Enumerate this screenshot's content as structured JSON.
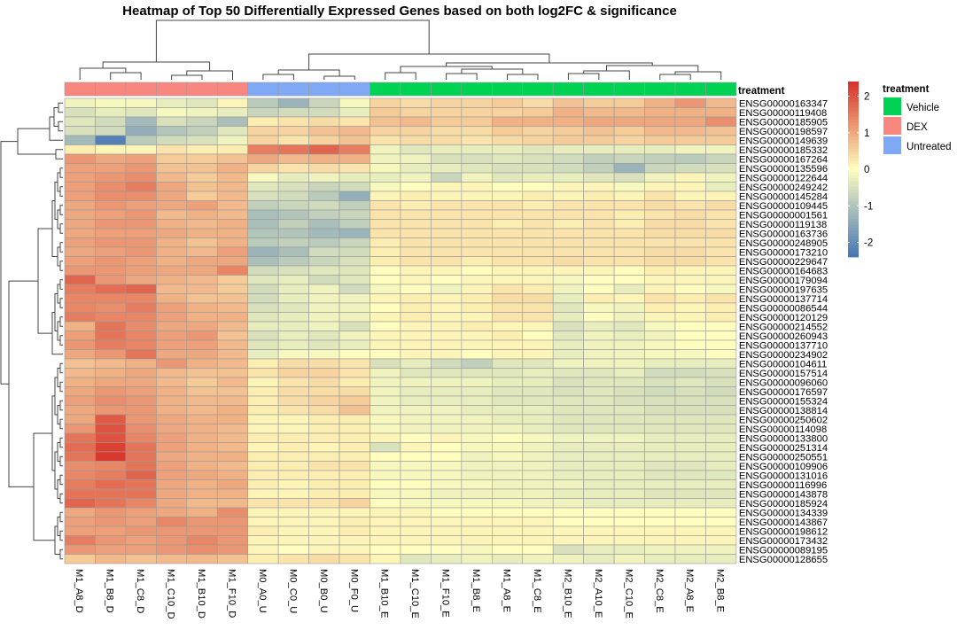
{
  "chart_data": {
    "type": "heatmap",
    "title": "Heatmap of Top 50 Differentially Expressed Genes based on both log2FC & significance",
    "annotation_title": "treatment",
    "legend": {
      "title": "treatment",
      "items": [
        {
          "label": "Vehicle",
          "color": "#00d254"
        },
        {
          "label": "DEX",
          "color": "#f8877f"
        },
        {
          "label": "Untreated",
          "color": "#80a9f5"
        }
      ]
    },
    "colorbar": {
      "ticks": [
        "2",
        "1",
        "0",
        "-1",
        "-2"
      ],
      "tick_values": [
        2,
        1,
        0,
        -1,
        -2
      ],
      "range": [
        -2.4,
        2.4
      ],
      "colors": [
        "#4575b4",
        "#fffebe",
        "#d73027"
      ]
    },
    "columns": [
      "M1_A8_D",
      "M1_B8_D",
      "M1_C8_D",
      "M1_C10_D",
      "M1_B10_D",
      "M1_F10_D",
      "M0_A0_U",
      "M0_C0_U",
      "M0_B0_U",
      "M0_F0_U",
      "M1_B10_E",
      "M1_C10_E",
      "M1_F10_E",
      "M1_B8_E",
      "M1_A8_E",
      "M1_C8_E",
      "M2_B10_E",
      "M2_A10_E",
      "M2_C10_E",
      "M2_C8_E",
      "M2_A8_E",
      "M2_B8_E"
    ],
    "column_treatment": [
      "DEX",
      "DEX",
      "DEX",
      "DEX",
      "DEX",
      "DEX",
      "Untreated",
      "Untreated",
      "Untreated",
      "Untreated",
      "Vehicle",
      "Vehicle",
      "Vehicle",
      "Vehicle",
      "Vehicle",
      "Vehicle",
      "Vehicle",
      "Vehicle",
      "Vehicle",
      "Vehicle",
      "Vehicle",
      "Vehicle"
    ],
    "rows": [
      "ENSG00000163347",
      "ENSG00000119408",
      "ENSG00000185905",
      "ENSG00000198597",
      "ENSG00000149639",
      "ENSG00000185332",
      "ENSG00000167264",
      "ENSG00000135596",
      "ENSG00000122644",
      "ENSG00000249242",
      "ENSG00000145284",
      "ENSG00000109445",
      "ENSG00000001561",
      "ENSG00000119138",
      "ENSG00000163736",
      "ENSG00000248905",
      "ENSG00000173210",
      "ENSG00000229647",
      "ENSG00000164683",
      "ENSG00000179094",
      "ENSG00000197635",
      "ENSG00000137714",
      "ENSG00000086544",
      "ENSG00000120129",
      "ENSG00000214552",
      "ENSG00000260943",
      "ENSG00000137710",
      "ENSG00000234902",
      "ENSG00000104611",
      "ENSG00000157514",
      "ENSG00000096060",
      "ENSG00000176597",
      "ENSG00000155324",
      "ENSG00000138814",
      "ENSG00000250602",
      "ENSG00000114098",
      "ENSG00000133800",
      "ENSG00000251314",
      "ENSG00000250551",
      "ENSG00000109906",
      "ENSG00000131016",
      "ENSG00000116996",
      "ENSG00000143878",
      "ENSG00000185924",
      "ENSG00000134339",
      "ENSG00000143867",
      "ENSG00000198612",
      "ENSG00000173432",
      "ENSG00000089195",
      "ENSG00000128655"
    ],
    "values": [
      [
        -0.2,
        -0.1,
        -0.1,
        -0.3,
        -0.4,
        0.1,
        -0.9,
        -1.3,
        -0.7,
        -0.1,
        0.5,
        0.4,
        0.5,
        0.5,
        0.6,
        0.4,
        0.7,
        0.6,
        0.6,
        0.9,
        1.2,
        0.8
      ],
      [
        -0.5,
        -0.3,
        -0.4,
        -0.1,
        -0.2,
        -0.3,
        -0.7,
        -0.6,
        -0.6,
        -0.3,
        0.6,
        0.5,
        0.5,
        0.5,
        0.5,
        0.6,
        0.9,
        0.8,
        0.8,
        0.9,
        0.9,
        0.9
      ],
      [
        -0.4,
        -0.6,
        -1.2,
        -0.5,
        -0.7,
        -1.1,
        0.2,
        0.3,
        0.4,
        0.3,
        0.7,
        0.8,
        0.6,
        0.6,
        0.9,
        0.9,
        0.9,
        1.0,
        1.0,
        1.0,
        1.0,
        1.3
      ],
      [
        -0.5,
        -0.6,
        -1.4,
        -1.0,
        -0.8,
        -0.4,
        0.5,
        0.5,
        0.7,
        0.8,
        0.5,
        0.5,
        0.4,
        0.4,
        0.6,
        0.5,
        0.6,
        0.7,
        0.6,
        0.8,
        0.8,
        0.7
      ],
      [
        -1.2,
        -2.2,
        -0.9,
        -0.6,
        -0.5,
        -0.2,
        0.5,
        0.3,
        0.5,
        0.7,
        0.3,
        0.4,
        0.4,
        0.3,
        0.4,
        0.5,
        0.6,
        0.6,
        0.5,
        0.6,
        0.6,
        0.6
      ],
      [
        0.2,
        0.1,
        0.1,
        0.3,
        0.2,
        0.2,
        1.5,
        1.6,
        1.8,
        1.5,
        -0.2,
        -0.4,
        -0.3,
        -0.3,
        -0.3,
        -0.4,
        -0.3,
        -0.3,
        -0.3,
        -0.3,
        -0.2,
        -0.2
      ],
      [
        1.2,
        1.0,
        1.1,
        0.6,
        0.6,
        0.7,
        1.0,
        0.8,
        0.9,
        0.9,
        -0.2,
        -0.2,
        -0.5,
        -0.5,
        -0.4,
        -0.5,
        -0.6,
        -0.8,
        -0.7,
        -0.8,
        -0.9,
        -0.7
      ],
      [
        1.1,
        1.1,
        1.2,
        0.7,
        0.7,
        0.9,
        0.5,
        0.3,
        0.4,
        0.3,
        -0.1,
        -0.3,
        -0.3,
        -0.4,
        -0.5,
        -0.5,
        -0.6,
        -0.8,
        -1.3,
        -0.7,
        -0.6,
        -0.5
      ],
      [
        1.1,
        1.2,
        1.3,
        0.8,
        0.6,
        0.8,
        -0.1,
        -0.3,
        -0.2,
        -0.3,
        -0.3,
        -0.2,
        -0.7,
        -0.2,
        -0.4,
        -0.3,
        -0.3,
        -0.4,
        -0.5,
        -0.2,
        0.1,
        -0.2
      ],
      [
        1.1,
        1.3,
        1.5,
        1.0,
        0.7,
        0.8,
        -0.4,
        -0.5,
        -0.7,
        -0.6,
        -0.1,
        0.0,
        0.1,
        0.1,
        0.0,
        0.0,
        0.1,
        0.1,
        -0.1,
        0.1,
        0.1,
        -0.3
      ],
      [
        1.1,
        1.3,
        1.3,
        1.0,
        0.6,
        0.8,
        -0.5,
        -0.6,
        -0.9,
        -1.4,
        0.1,
        0.2,
        0.1,
        0.1,
        0.1,
        0.2,
        0.1,
        0.2,
        0.1,
        0.3,
        0.1,
        0.1
      ],
      [
        1.0,
        1.2,
        1.1,
        1.0,
        1.1,
        0.8,
        -0.8,
        -0.7,
        -0.6,
        -0.8,
        0.3,
        0.2,
        0.3,
        0.3,
        0.3,
        0.2,
        0.3,
        0.3,
        0.3,
        0.4,
        0.3,
        0.4
      ],
      [
        1.0,
        1.1,
        1.2,
        0.8,
        0.9,
        0.8,
        -1.1,
        -1.0,
        -0.8,
        -0.7,
        0.3,
        0.3,
        0.3,
        0.3,
        0.3,
        0.3,
        0.3,
        0.3,
        0.2,
        0.3,
        0.4,
        0.3
      ],
      [
        1.0,
        1.2,
        1.2,
        0.9,
        0.8,
        0.9,
        -1.1,
        -0.8,
        -1.1,
        -0.8,
        0.3,
        0.3,
        0.3,
        0.3,
        0.2,
        0.3,
        0.2,
        0.3,
        0.2,
        0.4,
        0.4,
        0.3
      ],
      [
        1.0,
        1.1,
        1.1,
        1.0,
        0.9,
        0.9,
        -1.0,
        -1.0,
        -1.2,
        -1.3,
        0.3,
        0.3,
        0.3,
        0.3,
        0.3,
        0.3,
        0.3,
        0.3,
        0.3,
        0.4,
        0.4,
        0.4
      ],
      [
        1.1,
        1.2,
        1.2,
        0.9,
        0.7,
        0.9,
        -0.9,
        -0.8,
        -0.9,
        -0.7,
        0.2,
        0.3,
        0.3,
        0.3,
        0.3,
        0.3,
        0.3,
        0.3,
        0.3,
        0.3,
        0.3,
        0.3
      ],
      [
        1.0,
        1.1,
        1.2,
        0.9,
        0.8,
        1.1,
        -1.3,
        -1.1,
        -0.6,
        -0.6,
        0.2,
        0.3,
        0.3,
        0.3,
        0.3,
        0.3,
        0.3,
        0.3,
        0.3,
        0.4,
        0.4,
        0.3
      ],
      [
        1.1,
        1.2,
        1.1,
        0.9,
        1.0,
        1.0,
        -1.1,
        -0.9,
        -0.7,
        -0.5,
        0.2,
        0.3,
        0.3,
        0.2,
        0.3,
        0.3,
        0.4,
        0.3,
        0.3,
        0.4,
        0.4,
        0.3
      ],
      [
        1.2,
        1.2,
        1.1,
        1.0,
        1.0,
        1.4,
        -0.6,
        -0.5,
        -0.4,
        -0.4,
        0.0,
        0.1,
        0.1,
        0.0,
        0.1,
        0.1,
        0.1,
        0.1,
        0.0,
        0.2,
        0.1,
        0.1
      ],
      [
        1.8,
        1.2,
        1.0,
        0.9,
        0.8,
        0.6,
        -0.4,
        -0.3,
        -0.6,
        -0.4,
        0.0,
        0.1,
        0.0,
        0.1,
        0.1,
        0.1,
        -0.1,
        0.0,
        0.0,
        0.1,
        0.1,
        0.1
      ],
      [
        1.5,
        1.7,
        1.8,
        0.8,
        0.8,
        0.6,
        -0.6,
        -0.3,
        -0.2,
        -0.6,
        -0.1,
        0.0,
        -0.2,
        0.1,
        0.3,
        0.2,
        -0.2,
        0.0,
        -0.3,
        0.1,
        0.0,
        -0.1
      ],
      [
        1.4,
        1.4,
        1.4,
        0.9,
        0.7,
        0.7,
        -0.6,
        -0.3,
        -0.2,
        -0.2,
        0.1,
        0.2,
        0.1,
        0.2,
        0.4,
        0.4,
        -0.3,
        0.2,
        0.1,
        0.3,
        0.2,
        0.3
      ],
      [
        1.4,
        1.3,
        1.5,
        1.1,
        0.9,
        0.8,
        -0.5,
        -0.4,
        -0.2,
        -0.2,
        0.0,
        0.2,
        0.1,
        0.2,
        0.3,
        0.3,
        -0.4,
        -0.1,
        -0.2,
        0.2,
        0.1,
        0.2
      ],
      [
        1.5,
        1.4,
        1.4,
        1.1,
        0.9,
        0.9,
        -0.4,
        -0.3,
        -0.2,
        -0.2,
        0.1,
        0.2,
        0.1,
        0.1,
        0.3,
        0.3,
        -0.3,
        0.0,
        -0.2,
        0.1,
        0.1,
        0.2
      ],
      [
        0.9,
        1.6,
        1.3,
        1.0,
        1.0,
        0.8,
        -0.3,
        -0.3,
        -0.2,
        -0.5,
        0.0,
        0.1,
        0.1,
        0.2,
        0.1,
        0.1,
        -0.5,
        -0.3,
        -0.4,
        -0.1,
        0.0,
        0.0
      ],
      [
        1.1,
        1.6,
        1.4,
        1.1,
        1.2,
        0.7,
        -0.5,
        -0.3,
        -0.4,
        -0.2,
        0.1,
        0.1,
        0.1,
        0.1,
        0.2,
        0.0,
        -0.4,
        -0.2,
        -0.3,
        -0.2,
        0.0,
        0.0
      ],
      [
        1.2,
        1.5,
        1.4,
        1.1,
        1.1,
        0.8,
        -0.4,
        -0.3,
        -0.4,
        -0.3,
        0.1,
        0.1,
        0.1,
        0.1,
        0.1,
        0.1,
        -0.3,
        -0.2,
        -0.2,
        -0.1,
        0.0,
        0.0
      ],
      [
        1.0,
        1.2,
        1.6,
        1.0,
        1.0,
        0.8,
        -0.3,
        -0.1,
        -0.1,
        0.0,
        0.0,
        0.1,
        0.1,
        0.0,
        0.1,
        0.1,
        -0.3,
        -0.2,
        -0.2,
        -0.1,
        -0.1,
        0.0
      ],
      [
        0.7,
        0.8,
        0.9,
        1.2,
        0.9,
        0.8,
        0.2,
        0.4,
        0.4,
        0.3,
        -0.5,
        -0.3,
        -0.6,
        -0.8,
        -0.4,
        -0.4,
        -0.2,
        -0.2,
        -0.2,
        -0.3,
        -0.3,
        -0.3
      ],
      [
        0.8,
        0.9,
        1.0,
        0.8,
        0.7,
        0.7,
        0.3,
        0.5,
        0.5,
        0.3,
        -0.2,
        -0.4,
        -0.4,
        -0.4,
        -0.4,
        -0.3,
        -0.4,
        -0.4,
        -0.3,
        -0.6,
        -0.6,
        -0.5
      ],
      [
        0.9,
        1.0,
        1.0,
        0.8,
        0.6,
        0.8,
        0.1,
        0.3,
        0.4,
        0.2,
        -0.2,
        -0.2,
        -0.2,
        -0.2,
        -0.3,
        -0.3,
        -0.5,
        -0.4,
        -0.4,
        -0.5,
        -0.4,
        -0.5
      ],
      [
        1.0,
        1.2,
        1.1,
        0.9,
        0.7,
        0.7,
        0.2,
        0.4,
        0.4,
        0.4,
        -0.2,
        -0.3,
        -0.3,
        -0.3,
        -0.4,
        -0.4,
        -0.5,
        -0.4,
        -0.5,
        -0.6,
        -0.5,
        -0.6
      ],
      [
        1.1,
        1.3,
        1.2,
        0.9,
        0.8,
        0.8,
        0.2,
        0.4,
        0.5,
        0.6,
        -0.2,
        -0.3,
        -0.3,
        -0.3,
        -0.4,
        -0.4,
        -0.4,
        -0.4,
        -0.5,
        -0.5,
        -0.5,
        -0.5
      ],
      [
        1.0,
        1.2,
        1.2,
        0.9,
        0.8,
        0.9,
        0.2,
        0.3,
        0.4,
        0.7,
        -0.2,
        -0.2,
        -0.2,
        -0.3,
        -0.3,
        -0.3,
        -0.4,
        -0.4,
        -0.4,
        -0.5,
        -0.5,
        -0.5
      ],
      [
        1.0,
        1.9,
        1.2,
        1.0,
        0.9,
        0.9,
        0.1,
        0.1,
        0.2,
        0.2,
        -0.1,
        -0.2,
        -0.2,
        -0.2,
        -0.3,
        -0.3,
        -0.4,
        -0.4,
        -0.4,
        -0.4,
        -0.4,
        -0.4
      ],
      [
        1.2,
        2.0,
        1.3,
        1.0,
        0.9,
        0.8,
        0.1,
        0.1,
        0.2,
        0.2,
        -0.1,
        -0.2,
        -0.2,
        -0.2,
        -0.2,
        -0.3,
        -0.4,
        -0.4,
        -0.4,
        -0.4,
        -0.4,
        -0.4
      ],
      [
        1.6,
        2.0,
        1.4,
        1.1,
        0.9,
        0.8,
        0.2,
        0.2,
        0.2,
        0.2,
        0.1,
        0.0,
        0.1,
        -0.1,
        0.0,
        -0.1,
        -0.2,
        -0.2,
        -0.2,
        -0.3,
        -0.3,
        -0.3
      ],
      [
        1.7,
        2.2,
        1.6,
        1.1,
        0.9,
        0.8,
        0.1,
        0.2,
        0.1,
        0.2,
        -0.5,
        0.1,
        0.0,
        -0.1,
        -0.1,
        -0.2,
        -0.3,
        -0.3,
        -0.3,
        -0.3,
        -0.3,
        -0.3
      ],
      [
        1.6,
        2.3,
        1.6,
        1.0,
        0.9,
        0.9,
        0.2,
        0.2,
        0.2,
        0.2,
        0.0,
        0.0,
        0.0,
        -0.2,
        -0.1,
        -0.2,
        -0.3,
        -0.3,
        -0.3,
        -0.3,
        -0.3,
        -0.3
      ],
      [
        1.3,
        1.4,
        1.6,
        1.1,
        0.9,
        0.8,
        0.2,
        0.2,
        0.3,
        0.3,
        -0.1,
        -0.1,
        -0.1,
        -0.2,
        -0.2,
        -0.2,
        -0.3,
        -0.3,
        -0.3,
        -0.4,
        -0.4,
        -0.3
      ],
      [
        1.4,
        1.5,
        1.8,
        1.1,
        1.0,
        0.9,
        0.2,
        0.2,
        0.2,
        0.2,
        -0.1,
        -0.1,
        -0.1,
        -0.2,
        -0.2,
        -0.2,
        -0.3,
        -0.3,
        -0.3,
        -0.4,
        -0.4,
        -0.4
      ],
      [
        1.5,
        1.7,
        1.6,
        1.0,
        0.9,
        1.0,
        0.2,
        0.1,
        0.2,
        0.2,
        0.0,
        0.0,
        -0.1,
        -0.1,
        -0.2,
        -0.2,
        -0.2,
        -0.3,
        -0.3,
        -0.3,
        -0.3,
        -0.3
      ],
      [
        1.6,
        1.6,
        1.6,
        1.0,
        0.9,
        0.9,
        0.1,
        0.1,
        0.2,
        0.2,
        -0.1,
        -0.1,
        -0.2,
        -0.2,
        -0.2,
        -0.2,
        -0.3,
        -0.3,
        -0.3,
        -0.4,
        -0.4,
        -0.4
      ],
      [
        1.8,
        1.6,
        1.4,
        1.0,
        0.8,
        0.8,
        0.3,
        0.3,
        0.3,
        0.5,
        0.0,
        -0.1,
        -0.1,
        -0.1,
        -0.1,
        -0.2,
        -0.2,
        -0.3,
        -0.3,
        -0.3,
        -0.3,
        -0.3
      ],
      [
        1.0,
        1.2,
        1.1,
        1.0,
        0.9,
        1.3,
        0.1,
        0.1,
        0.1,
        0.1,
        0.1,
        0.1,
        0.0,
        0.0,
        0.0,
        0.0,
        0.0,
        0.0,
        0.0,
        0.0,
        0.0,
        0.0
      ],
      [
        1.1,
        1.2,
        1.1,
        1.4,
        1.2,
        1.2,
        0.1,
        0.1,
        0.1,
        0.2,
        0.1,
        0.1,
        0.1,
        0.1,
        0.1,
        0.1,
        0.0,
        0.0,
        0.0,
        0.0,
        0.0,
        0.0
      ],
      [
        1.1,
        1.1,
        1.2,
        1.2,
        1.2,
        1.2,
        0.2,
        0.1,
        0.1,
        0.2,
        0.1,
        0.1,
        0.1,
        0.1,
        0.1,
        0.1,
        0.1,
        0.1,
        0.1,
        0.1,
        0.1,
        0.1
      ],
      [
        1.5,
        1.2,
        1.1,
        1.2,
        1.4,
        1.2,
        0.1,
        0.1,
        0.1,
        0.1,
        0.1,
        0.1,
        0.1,
        0.1,
        0.1,
        0.1,
        0.1,
        0.1,
        0.1,
        0.1,
        0.1,
        0.1
      ],
      [
        1.2,
        1.1,
        1.1,
        1.2,
        1.3,
        1.2,
        0.1,
        0.0,
        0.1,
        0.1,
        0.0,
        0.0,
        0.0,
        -0.1,
        0.0,
        0.0,
        -0.5,
        -0.3,
        -0.3,
        -0.2,
        -0.2,
        -0.2
      ],
      [
        0.6,
        0.8,
        0.7,
        0.8,
        0.8,
        0.7,
        0.2,
        0.3,
        0.4,
        0.3,
        0.1,
        -0.4,
        -0.3,
        -0.2,
        -0.3,
        -0.2,
        -0.2,
        -0.3,
        -0.2,
        -0.3,
        -0.3,
        -0.3
      ]
    ]
  }
}
